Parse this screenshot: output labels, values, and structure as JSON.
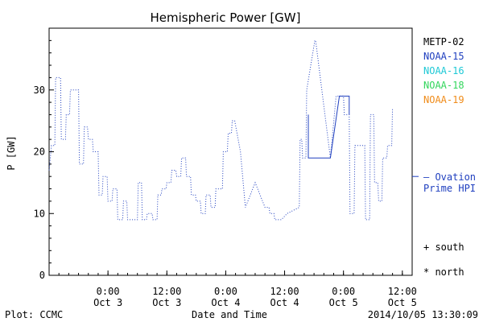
{
  "chart_data": {
    "type": "line",
    "title": "Hemispheric Power [GW]",
    "ylabel": "P [GW]",
    "xlabel": "Date and Time",
    "ylim": [
      0,
      40
    ],
    "yticks": [
      0,
      10,
      20,
      30
    ],
    "xlim": [
      "2014-10-02 12:00",
      "2014-10-05 14:00"
    ],
    "xticks": [
      {
        "t": "2014-10-03 00:00",
        "line1": "0:00",
        "line2": "Oct 3"
      },
      {
        "t": "2014-10-03 12:00",
        "line1": "12:00",
        "line2": "Oct 3"
      },
      {
        "t": "2014-10-04 00:00",
        "line1": "0:00",
        "line2": "Oct 4"
      },
      {
        "t": "2014-10-04 12:00",
        "line1": "12:00",
        "line2": "Oct 4"
      },
      {
        "t": "2014-10-05 00:00",
        "line1": "0:00",
        "line2": "Oct 5"
      },
      {
        "t": "2014-10-05 12:00",
        "line1": "12:00",
        "line2": "Oct 5"
      }
    ],
    "legend": [
      {
        "name": "METP-02",
        "color": "#000000"
      },
      {
        "name": "NOAA-15",
        "color": "#1f3fbf"
      },
      {
        "name": "NOAA-16",
        "color": "#1fc9d6"
      },
      {
        "name": "NOAA-18",
        "color": "#33d65c"
      },
      {
        "name": "NOAA-19",
        "color": "#f08c1a"
      }
    ],
    "ovation": {
      "label1": "— Ovation",
      "label2": "Prime HPI",
      "value": 16,
      "color": "#1f3fbf"
    },
    "markers": {
      "south": "+ south",
      "north": "* north"
    },
    "series": [
      {
        "color": "#1f3fbf",
        "style": "dotted",
        "points": [
          [
            "2014-10-02 12:00",
            17
          ],
          [
            "2014-10-02 12:30",
            21
          ],
          [
            "2014-10-02 13:10",
            21
          ],
          [
            "2014-10-02 13:20",
            32
          ],
          [
            "2014-10-02 14:20",
            32
          ],
          [
            "2014-10-02 14:30",
            22
          ],
          [
            "2014-10-02 15:20",
            22
          ],
          [
            "2014-10-02 15:30",
            26
          ],
          [
            "2014-10-02 16:10",
            26
          ],
          [
            "2014-10-02 16:20",
            30
          ],
          [
            "2014-10-02 18:00",
            30
          ],
          [
            "2014-10-02 18:10",
            18
          ],
          [
            "2014-10-02 19:00",
            18
          ],
          [
            "2014-10-02 19:10",
            24
          ],
          [
            "2014-10-02 19:50",
            24
          ],
          [
            "2014-10-02 20:00",
            22
          ],
          [
            "2014-10-02 20:50",
            22
          ],
          [
            "2014-10-02 21:00",
            20
          ],
          [
            "2014-10-02 22:00",
            20
          ],
          [
            "2014-10-02 22:10",
            13
          ],
          [
            "2014-10-02 22:50",
            13
          ],
          [
            "2014-10-02 23:00",
            16
          ],
          [
            "2014-10-02 23:50",
            16
          ],
          [
            "2014-10-03 00:00",
            12
          ],
          [
            "2014-10-03 00:50",
            12
          ],
          [
            "2014-10-03 01:00",
            14
          ],
          [
            "2014-10-03 01:50",
            14
          ],
          [
            "2014-10-03 02:00",
            9
          ],
          [
            "2014-10-03 03:00",
            9
          ],
          [
            "2014-10-03 03:10",
            12
          ],
          [
            "2014-10-03 03:50",
            12
          ],
          [
            "2014-10-03 04:00",
            9
          ],
          [
            "2014-10-03 06:00",
            9
          ],
          [
            "2014-10-03 06:10",
            15
          ],
          [
            "2014-10-03 06:50",
            15
          ],
          [
            "2014-10-03 07:00",
            9
          ],
          [
            "2014-10-03 07:50",
            9
          ],
          [
            "2014-10-03 08:00",
            10
          ],
          [
            "2014-10-03 09:00",
            10
          ],
          [
            "2014-10-03 09:10",
            9
          ],
          [
            "2014-10-03 10:00",
            9
          ],
          [
            "2014-10-03 10:10",
            13
          ],
          [
            "2014-10-03 10:50",
            13
          ],
          [
            "2014-10-03 11:00",
            14
          ],
          [
            "2014-10-03 11:50",
            14
          ],
          [
            "2014-10-03 12:00",
            15
          ],
          [
            "2014-10-03 12:50",
            15
          ],
          [
            "2014-10-03 13:00",
            17
          ],
          [
            "2014-10-03 13:50",
            17
          ],
          [
            "2014-10-03 14:00",
            16
          ],
          [
            "2014-10-03 14:50",
            16
          ],
          [
            "2014-10-03 15:00",
            19
          ],
          [
            "2014-10-03 15:50",
            19
          ],
          [
            "2014-10-03 16:00",
            16
          ],
          [
            "2014-10-03 16:50",
            16
          ],
          [
            "2014-10-03 17:00",
            13
          ],
          [
            "2014-10-03 17:50",
            13
          ],
          [
            "2014-10-03 18:00",
            12
          ],
          [
            "2014-10-03 18:50",
            12
          ],
          [
            "2014-10-03 19:00",
            10
          ],
          [
            "2014-10-03 19:50",
            10
          ],
          [
            "2014-10-03 20:00",
            13
          ],
          [
            "2014-10-03 20:50",
            13
          ],
          [
            "2014-10-03 21:00",
            11
          ],
          [
            "2014-10-03 21:50",
            11
          ],
          [
            "2014-10-03 22:00",
            14
          ],
          [
            "2014-10-03 23:20",
            14
          ],
          [
            "2014-10-03 23:30",
            20
          ],
          [
            "2014-10-04 00:20",
            20
          ],
          [
            "2014-10-04 00:30",
            23
          ],
          [
            "2014-10-04 01:10",
            23
          ],
          [
            "2014-10-04 01:20",
            25
          ],
          [
            "2014-10-04 01:50",
            25
          ],
          [
            "2014-10-04 03:00",
            20
          ],
          [
            "2014-10-04 04:00",
            11
          ],
          [
            "2014-10-04 06:00",
            15
          ],
          [
            "2014-10-04 08:00",
            11
          ],
          [
            "2014-10-04 08:50",
            11
          ],
          [
            "2014-10-04 09:00",
            10
          ],
          [
            "2014-10-04 09:50",
            10
          ],
          [
            "2014-10-04 10:00",
            9
          ],
          [
            "2014-10-04 11:20",
            9
          ],
          [
            "2014-10-04 12:30",
            10
          ],
          [
            "2014-10-04 15:00",
            11
          ],
          [
            "2014-10-04 15:10",
            22
          ],
          [
            "2014-10-04 15:30",
            22
          ],
          [
            "2014-10-04 15:40",
            19
          ],
          [
            "2014-10-04 16:20",
            19
          ],
          [
            "2014-10-04 16:30",
            30
          ],
          [
            "2014-10-04 18:10",
            38
          ],
          [
            "2014-10-04 18:20",
            38
          ],
          [
            "2014-10-04 21:20",
            19
          ],
          [
            "2014-10-04 22:30",
            29
          ],
          [
            "2014-10-05 00:00",
            29
          ],
          [
            "2014-10-05 00:10",
            26
          ],
          [
            "2014-10-05 01:10",
            26
          ],
          [
            "2014-10-05 01:20",
            10
          ],
          [
            "2014-10-05 02:10",
            10
          ],
          [
            "2014-10-05 02:20",
            21
          ],
          [
            "2014-10-05 04:20",
            21
          ],
          [
            "2014-10-05 04:30",
            9
          ],
          [
            "2014-10-05 05:20",
            9
          ],
          [
            "2014-10-05 05:30",
            26
          ],
          [
            "2014-10-05 06:10",
            26
          ],
          [
            "2014-10-05 06:20",
            15
          ],
          [
            "2014-10-05 07:00",
            15
          ],
          [
            "2014-10-05 07:10",
            12
          ],
          [
            "2014-10-05 07:50",
            12
          ],
          [
            "2014-10-05 08:00",
            19
          ],
          [
            "2014-10-05 08:50",
            19
          ],
          [
            "2014-10-05 09:00",
            21
          ],
          [
            "2014-10-05 09:50",
            21
          ],
          [
            "2014-10-05 10:00",
            27
          ]
        ]
      },
      {
        "color": "#1f3fbf",
        "style": "solid",
        "points": [
          [
            "2014-10-04 16:50",
            26
          ],
          [
            "2014-10-04 16:50",
            19
          ],
          [
            "2014-10-04 21:20",
            19
          ],
          [
            "2014-10-04 23:10",
            29
          ],
          [
            "2014-10-05 01:10",
            29
          ],
          [
            "2014-10-05 01:10",
            26
          ]
        ]
      }
    ]
  },
  "footer": {
    "source": "Plot: CCMC",
    "timestamp": "2014/10/05 13:30:09"
  }
}
